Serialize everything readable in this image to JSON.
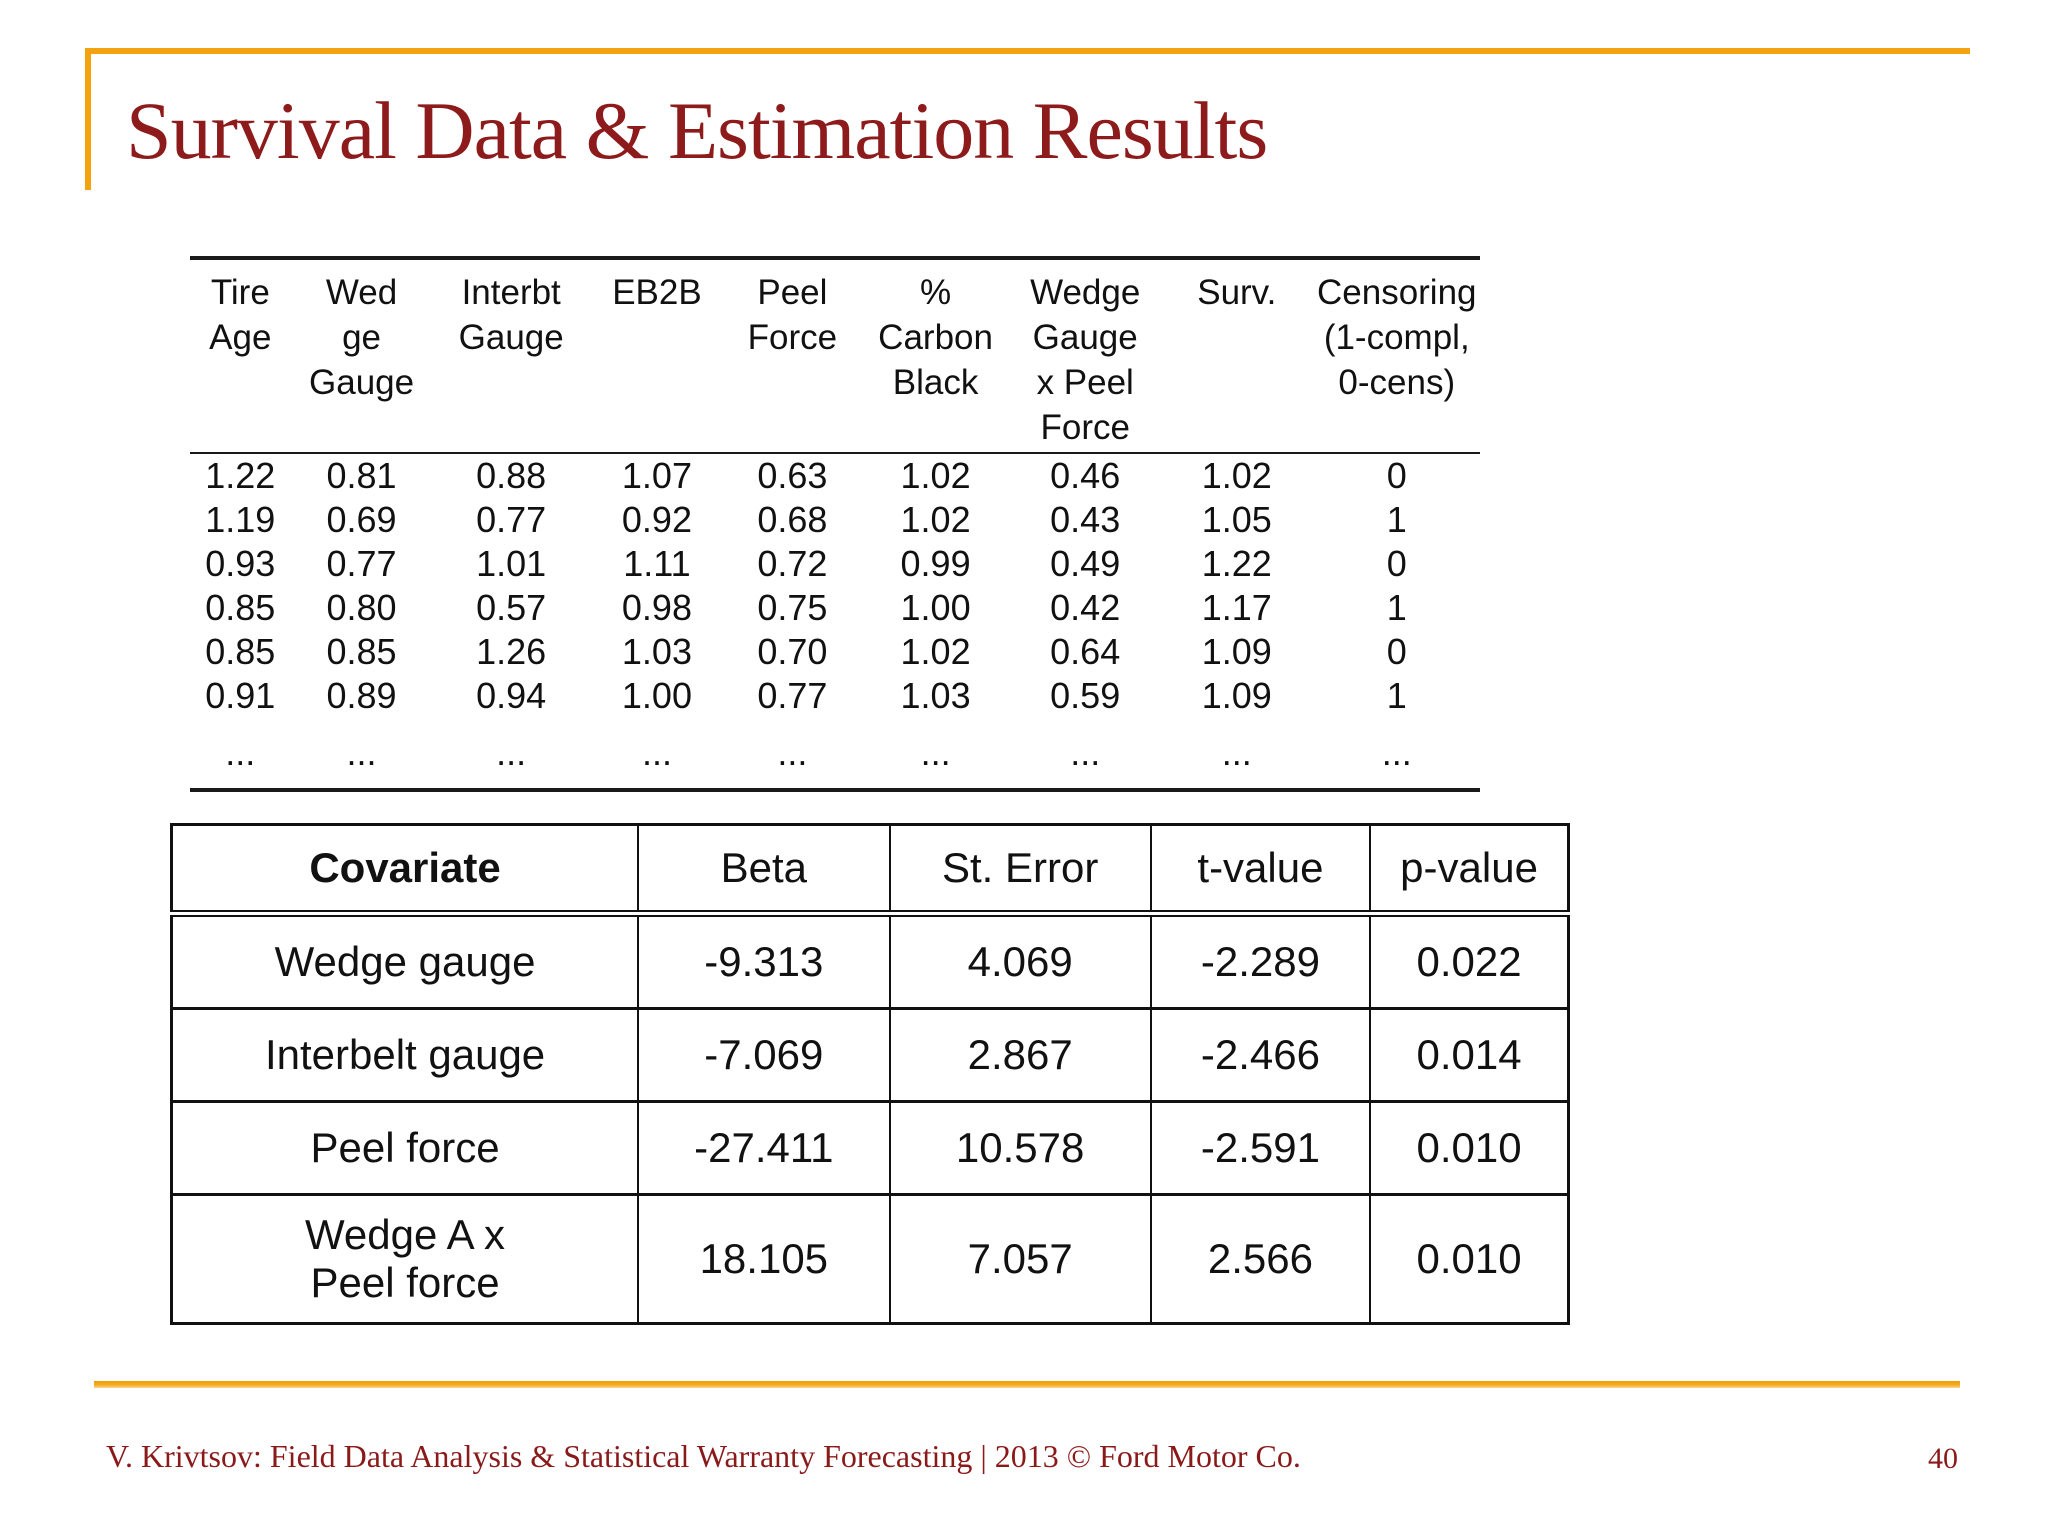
{
  "slide": {
    "title": "Survival Data & Estimation Results",
    "footer": "V. Krivtsov: Field Data Analysis & Statistical Warranty Forecasting |  2013 © Ford Motor Co.",
    "page_number": "40",
    "colors": {
      "accent_orange": "#f2a30f",
      "title_maroon": "#8e1b1b",
      "footer_maroon": "#8a1a1a",
      "table_ink": "#111111"
    }
  },
  "survival_table": {
    "headers": [
      "Tire\nAge",
      "Wed\nge\nGauge",
      "Interbt\nGauge",
      "EB2B",
      "Peel\nForce",
      "%\nCarbon\nBlack",
      "Wedge\nGauge\nx Peel\nForce",
      "Surv.",
      "Censoring\n(1-compl,\n0-cens)"
    ],
    "col_widths_pct": [
      7.8,
      11.0,
      12.2,
      10.4,
      10.6,
      11.6,
      11.6,
      11.9,
      12.9
    ],
    "rows": [
      [
        "1.22",
        "0.81",
        "0.88",
        "1.07",
        "0.63",
        "1.02",
        "0.46",
        "1.02",
        "0"
      ],
      [
        "1.19",
        "0.69",
        "0.77",
        "0.92",
        "0.68",
        "1.02",
        "0.43",
        "1.05",
        "1"
      ],
      [
        "0.93",
        "0.77",
        "1.01",
        "1.11",
        "0.72",
        "0.99",
        "0.49",
        "1.22",
        "0"
      ],
      [
        "0.85",
        "0.80",
        "0.57",
        "0.98",
        "0.75",
        "1.00",
        "0.42",
        "1.17",
        "1"
      ],
      [
        "0.85",
        "0.85",
        "1.26",
        "1.03",
        "0.70",
        "1.02",
        "0.64",
        "1.09",
        "0"
      ],
      [
        "0.91",
        "0.89",
        "0.94",
        "1.00",
        "0.77",
        "1.03",
        "0.59",
        "1.09",
        "1"
      ],
      [
        "...",
        "...",
        "...",
        "...",
        "...",
        "...",
        "...",
        "...",
        "..."
      ]
    ]
  },
  "estimation_table": {
    "headers": [
      "Covariate",
      "Beta",
      "St. Error",
      "t-value",
      "p-value"
    ],
    "col_widths_pct": [
      33.4,
      18.0,
      18.7,
      15.7,
      14.2
    ],
    "rows": [
      [
        "Wedge gauge",
        "-9.313",
        "4.069",
        "-2.289",
        "0.022"
      ],
      [
        "Interbelt gauge",
        "-7.069",
        "2.867",
        "-2.466",
        "0.014"
      ],
      [
        "Peel force",
        "-27.411",
        "10.578",
        "-2.591",
        "0.010"
      ],
      [
        "Wedge A x\nPeel force",
        "18.105",
        "7.057",
        "2.566",
        "0.010"
      ]
    ]
  }
}
